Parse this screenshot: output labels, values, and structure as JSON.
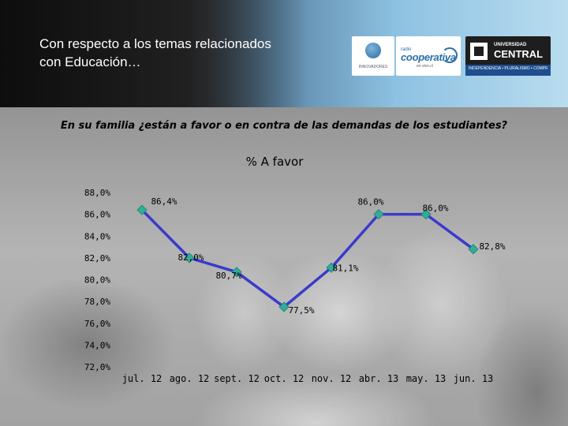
{
  "header": {
    "title_line1": "Con respecto a los temas relacionados",
    "title_line2": "con Educación…",
    "logos": {
      "partner_small_text": "INNOVADORES",
      "cooperativa_small": "radio",
      "cooperativa": "cooperativa",
      "cooperativa_sub": "en vivo.cl",
      "university_line1": "UNIVERSIDAD",
      "university_line2": "CENTRAL",
      "university_tagline": "INDEPENDENCIA • PLURALISMO • COMPROMISO"
    }
  },
  "question": "En su familia ¿están a favor o en contra de las demandas de los estudiantes?",
  "colors": {
    "line": "#3a3acc",
    "marker": "#2fae9a",
    "header_dark": "#1a1a1a",
    "header_light": "#8ec2e2"
  },
  "chart_data": {
    "type": "line",
    "title": "% A favor",
    "categories": [
      "jul. 12",
      "ago. 12",
      "sept. 12",
      "oct. 12",
      "nov. 12",
      "abr. 13",
      "may. 13",
      "jun. 13"
    ],
    "series": [
      {
        "values": [
          86.4,
          82.0,
          80.7,
          77.5,
          81.1,
          86.0,
          86.0,
          82.8
        ],
        "labels": [
          "86,4%",
          "82,0%",
          "80,7%",
          "77,5%",
          "81,1%",
          "86,0%",
          "86,0%",
          "82,8%"
        ]
      }
    ],
    "ylim": [
      72,
      88
    ],
    "yticks": [
      "72,0%",
      "74,0%",
      "76,0%",
      "78,0%",
      "80,0%",
      "82,0%",
      "84,0%",
      "86,0%",
      "88,0%"
    ],
    "ytick_values": [
      72,
      74,
      76,
      78,
      80,
      82,
      84,
      86,
      88
    ],
    "grid": false,
    "legend": "none"
  }
}
